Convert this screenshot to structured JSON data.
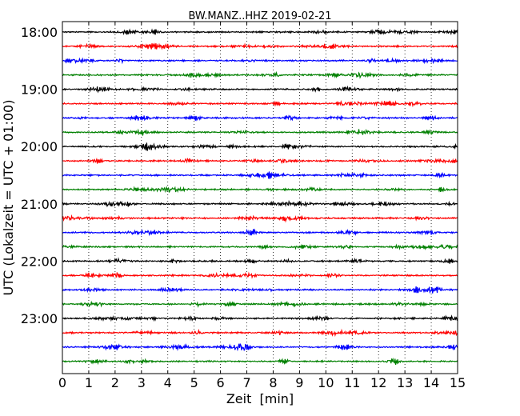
{
  "chart_data": {
    "type": "line",
    "title": "BW.MANZ..HHZ 2019-02-21",
    "xlabel": "Zeit  [min]",
    "ylabel": "UTC (Lokalzeit = UTC + 01:00)",
    "xlim": [
      0,
      15
    ],
    "x_ticks": [
      0,
      1,
      2,
      3,
      4,
      5,
      6,
      7,
      8,
      9,
      10,
      11,
      12,
      13,
      14,
      15
    ],
    "x_tick_labels": [
      "0",
      "1",
      "2",
      "3",
      "4",
      "5",
      "6",
      "7",
      "8",
      "9",
      "10",
      "11",
      "12",
      "13",
      "14",
      "15"
    ],
    "y_tick_labels": [
      "18:00",
      "19:00",
      "20:00",
      "21:00",
      "22:00",
      "23:00"
    ],
    "trace_start_times": [
      "18:00",
      "18:15",
      "18:30",
      "18:45",
      "19:00",
      "19:15",
      "19:30",
      "19:45",
      "20:00",
      "20:15",
      "20:30",
      "20:45",
      "21:00",
      "21:15",
      "21:30",
      "21:45",
      "22:00",
      "22:15",
      "22:30",
      "22:45",
      "23:00",
      "23:15",
      "23:30",
      "23:45"
    ],
    "trace_colors": [
      "#000000",
      "#ff0000",
      "#0000ff",
      "#008000"
    ],
    "grid": "x-dotted"
  }
}
